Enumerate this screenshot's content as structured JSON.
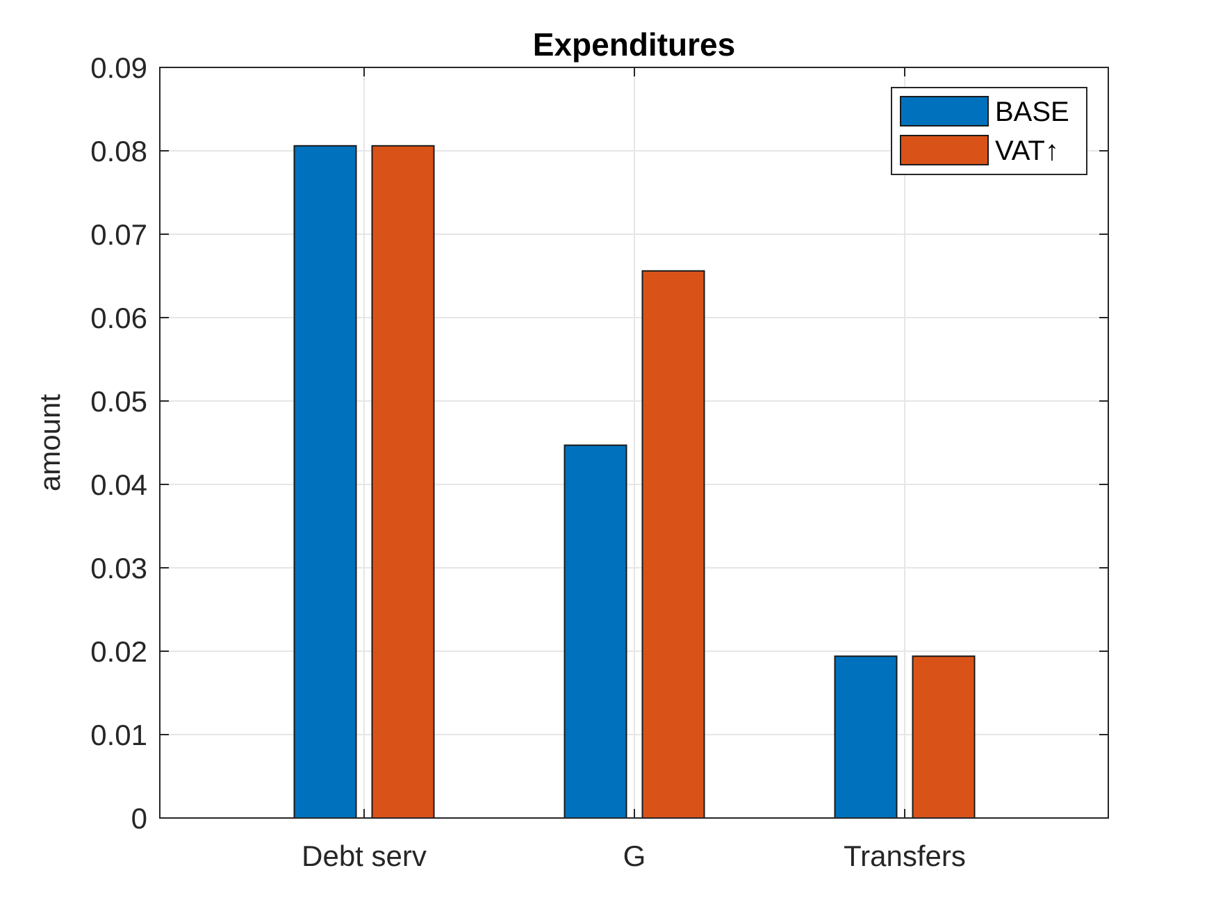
{
  "chart_data": {
    "type": "bar",
    "title": "Expenditures",
    "xlabel": "",
    "ylabel": "amount",
    "categories": [
      "Debt serv",
      "G",
      "Transfers"
    ],
    "series": [
      {
        "name": "BASE",
        "color": "#0072BD",
        "values": [
          0.0806,
          0.0447,
          0.0194
        ]
      },
      {
        "name": "VAT↑",
        "color": "#D95319",
        "values": [
          0.0806,
          0.0656,
          0.0194
        ]
      }
    ],
    "ylim": [
      0,
      0.09
    ],
    "yticks": [
      0,
      0.01,
      0.02,
      0.03,
      0.04,
      0.05,
      0.06,
      0.07,
      0.08,
      0.09
    ],
    "ytick_labels": [
      "0",
      "0.01",
      "0.02",
      "0.03",
      "0.04",
      "0.05",
      "0.06",
      "0.07",
      "0.08",
      "0.09"
    ],
    "grid": true,
    "legend_position": "top-right"
  }
}
